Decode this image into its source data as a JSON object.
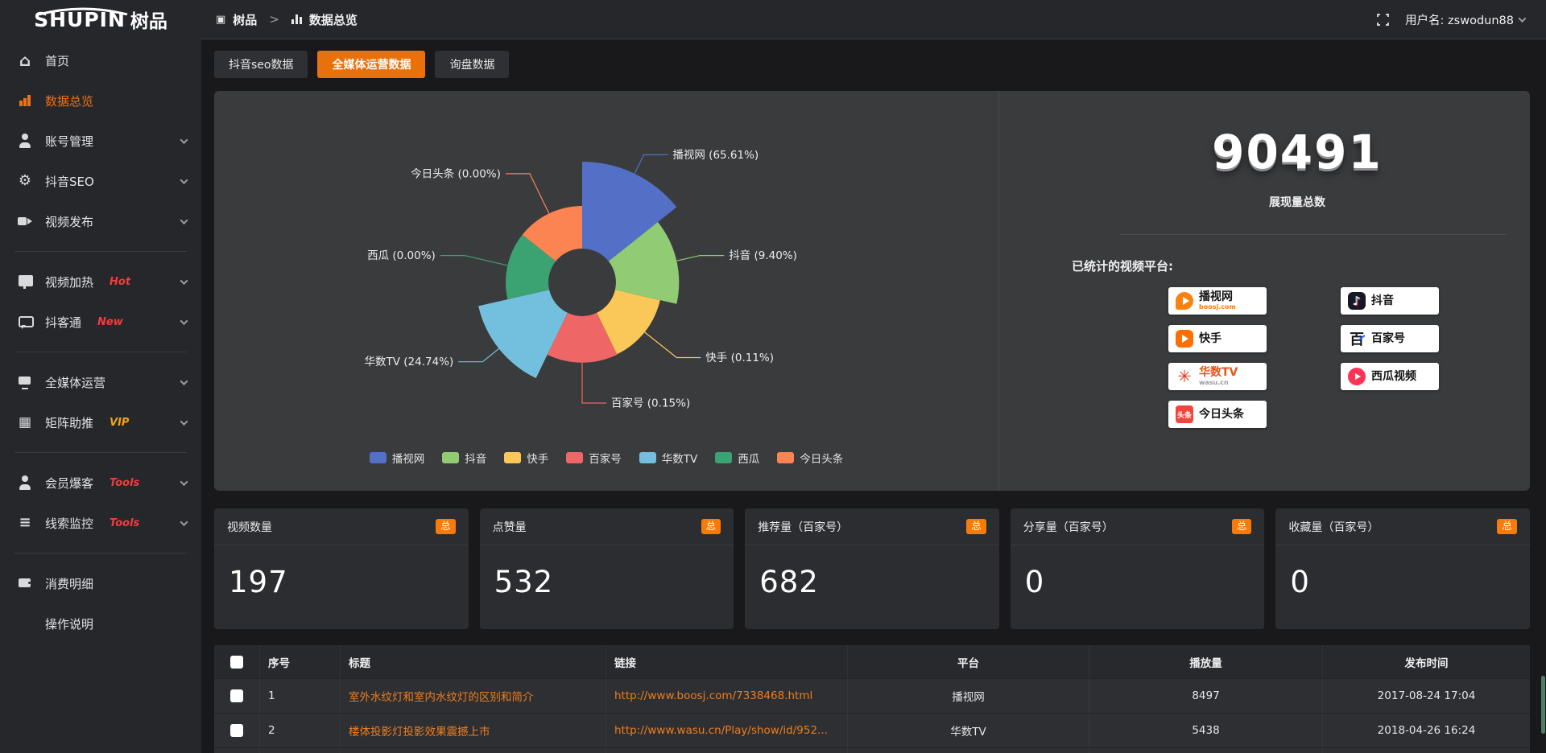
{
  "topbar": {
    "logo_main": "SHUPIN",
    "logo_sub": "树品",
    "breadcrumb_root": "树品",
    "breadcrumb_sep": ">",
    "breadcrumb_current": "数据总览",
    "username_label": "用户名: zswodun88"
  },
  "tabs": [
    {
      "label": "抖音seo数据",
      "active": false
    },
    {
      "label": "全媒体运营数据",
      "active": true
    },
    {
      "label": "询盘数据",
      "active": false
    }
  ],
  "sidebar": {
    "items": [
      {
        "label": "首页",
        "icon": "home"
      },
      {
        "label": "数据总览",
        "icon": "chart",
        "active": true
      },
      {
        "label": "账号管理",
        "icon": "user",
        "chevron": true
      },
      {
        "label": "抖音SEO",
        "icon": "gear",
        "chevron": true
      },
      {
        "label": "视频发布",
        "icon": "video",
        "chevron": true,
        "divider_after": true
      },
      {
        "label": "视频加热",
        "icon": "heat",
        "tag": "Hot",
        "tag_color": "#f23c3c",
        "chevron": true
      },
      {
        "label": "抖客通",
        "icon": "chat",
        "tag": "New",
        "tag_color": "#f23c3c",
        "chevron": true,
        "divider_after": true
      },
      {
        "label": "全媒体运营",
        "icon": "monitor",
        "chevron": true
      },
      {
        "label": "矩阵助推",
        "icon": "grid",
        "tag": "VIP",
        "tag_color": "#f0a21c",
        "chevron": true,
        "divider_after": true
      },
      {
        "label": "会员爆客",
        "icon": "person",
        "tag": "Tools",
        "tag_color": "#f23c3c",
        "chevron": true
      },
      {
        "label": "线索监控",
        "icon": "sliders",
        "tag": "Tools",
        "tag_color": "#f23c3c",
        "chevron": true,
        "divider_after": true
      },
      {
        "label": "消费明细",
        "icon": "wallet"
      },
      {
        "label": "操作说明",
        "icon": "help"
      }
    ]
  },
  "chart_data": {
    "type": "pie",
    "style": "nightingale-rose",
    "unit": "%",
    "legend_position": "bottom",
    "series": [
      {
        "name": "播视网",
        "value": 65.61,
        "pct_label": "65.61%",
        "color": "#5470c6"
      },
      {
        "name": "抖音",
        "value": 9.4,
        "pct_label": "9.40%",
        "color": "#91cc75"
      },
      {
        "name": "快手",
        "value": 0.11,
        "pct_label": "0.11%",
        "color": "#fac858"
      },
      {
        "name": "百家号",
        "value": 0.15,
        "pct_label": "0.15%",
        "color": "#ee6666"
      },
      {
        "name": "华数TV",
        "value": 24.74,
        "pct_label": "24.74%",
        "color": "#73c0de"
      },
      {
        "name": "西瓜",
        "value": 0.0,
        "pct_label": "0.00%",
        "color": "#3ba272"
      },
      {
        "name": "今日头条",
        "value": 0.0,
        "pct_label": "0.00%",
        "color": "#fc8452"
      }
    ]
  },
  "summary": {
    "total_value": "90491",
    "total_label": "展现量总数",
    "platforms_title": "已统计的视频平台:",
    "platform_columns": [
      [
        {
          "name": "播视网",
          "sub": "boosj.com",
          "sub_color": "#f87a10",
          "icon": "boosj"
        },
        {
          "name": "快手",
          "icon": "kuaishou"
        },
        {
          "name": "华数TV",
          "name_color": "#e8541c",
          "sub": "wasu.cn",
          "sub_color": "#9a9a9a",
          "icon": "wasu"
        },
        {
          "name": "今日头条",
          "icon": "toutiao",
          "icon_text": "头条"
        }
      ],
      [
        {
          "name": "抖音",
          "icon": "douyin"
        },
        {
          "name": "百家号",
          "icon": "baijiahao",
          "icon_text": "百"
        },
        {
          "name": "西瓜视频",
          "icon": "xigua"
        }
      ]
    ]
  },
  "stat_cards": [
    {
      "title": "视频数量",
      "badge": "总",
      "value": "197"
    },
    {
      "title": "点赞量",
      "badge": "总",
      "value": "532"
    },
    {
      "title": "推荐量（百家号）",
      "badge": "总",
      "value": "682"
    },
    {
      "title": "分享量（百家号）",
      "badge": "总",
      "value": "0"
    },
    {
      "title": "收藏量（百家号）",
      "badge": "总",
      "value": "0"
    }
  ],
  "table": {
    "headers": [
      "序号",
      "标题",
      "链接",
      "平台",
      "播放量",
      "发布时间"
    ],
    "rows": [
      {
        "no": "1",
        "title": "室外水纹灯和室内水纹灯的区别和简介",
        "link": "http://www.boosj.com/7338468.html",
        "platform": "播视网",
        "plays": "8497",
        "time": "2017-08-24 17:04"
      },
      {
        "no": "2",
        "title": "楼体投影灯投影效果震撼上市",
        "link": "http://www.wasu.cn/Play/show/id/952...",
        "platform": "华数TV",
        "plays": "5438",
        "time": "2018-04-26 16:24"
      }
    ]
  },
  "colors": {
    "accent": "#ee720c",
    "badge": "#f57b0c",
    "link": "#ee7d1f"
  }
}
